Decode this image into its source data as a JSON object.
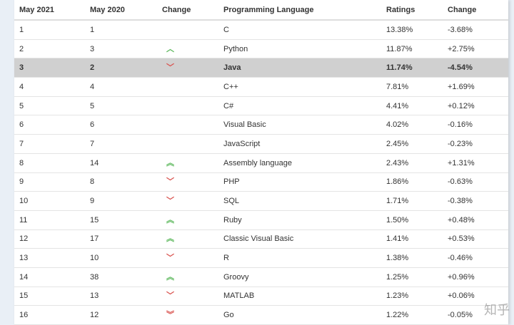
{
  "headers": [
    "May 2021",
    "May 2020",
    "Change",
    "Programming Language",
    "Ratings",
    "Change"
  ],
  "colors": {
    "up": "#5cb85c",
    "down": "#d9534f",
    "highlight": "#d0d0d0"
  },
  "rows": [
    {
      "r21": "1",
      "r20": "1",
      "trend": "none",
      "lang": "C",
      "rating": "13.38%",
      "change": "-3.68%"
    },
    {
      "r21": "2",
      "r20": "3",
      "trend": "up",
      "lang": "Python",
      "rating": "11.87%",
      "change": "+2.75%"
    },
    {
      "r21": "3",
      "r20": "2",
      "trend": "down",
      "lang": "Java",
      "rating": "11.74%",
      "change": "-4.54%",
      "highlighted": true
    },
    {
      "r21": "4",
      "r20": "4",
      "trend": "none",
      "lang": "C++",
      "rating": "7.81%",
      "change": "+1.69%"
    },
    {
      "r21": "5",
      "r20": "5",
      "trend": "none",
      "lang": "C#",
      "rating": "4.41%",
      "change": "+0.12%"
    },
    {
      "r21": "6",
      "r20": "6",
      "trend": "none",
      "lang": "Visual Basic",
      "rating": "4.02%",
      "change": "-0.16%"
    },
    {
      "r21": "7",
      "r20": "7",
      "trend": "none",
      "lang": "JavaScript",
      "rating": "2.45%",
      "change": "-0.23%"
    },
    {
      "r21": "8",
      "r20": "14",
      "trend": "double-up",
      "lang": "Assembly language",
      "rating": "2.43%",
      "change": "+1.31%"
    },
    {
      "r21": "9",
      "r20": "8",
      "trend": "down",
      "lang": "PHP",
      "rating": "1.86%",
      "change": "-0.63%"
    },
    {
      "r21": "10",
      "r20": "9",
      "trend": "down",
      "lang": "SQL",
      "rating": "1.71%",
      "change": "-0.38%"
    },
    {
      "r21": "11",
      "r20": "15",
      "trend": "double-up",
      "lang": "Ruby",
      "rating": "1.50%",
      "change": "+0.48%"
    },
    {
      "r21": "12",
      "r20": "17",
      "trend": "double-up",
      "lang": "Classic Visual Basic",
      "rating": "1.41%",
      "change": "+0.53%"
    },
    {
      "r21": "13",
      "r20": "10",
      "trend": "down",
      "lang": "R",
      "rating": "1.38%",
      "change": "-0.46%"
    },
    {
      "r21": "14",
      "r20": "38",
      "trend": "double-up",
      "lang": "Groovy",
      "rating": "1.25%",
      "change": "+0.96%"
    },
    {
      "r21": "15",
      "r20": "13",
      "trend": "down",
      "lang": "MATLAB",
      "rating": "1.23%",
      "change": "+0.06%"
    },
    {
      "r21": "16",
      "r20": "12",
      "trend": "double-down",
      "lang": "Go",
      "rating": "1.22%",
      "change": "-0.05%"
    }
  ],
  "watermark": "知乎"
}
